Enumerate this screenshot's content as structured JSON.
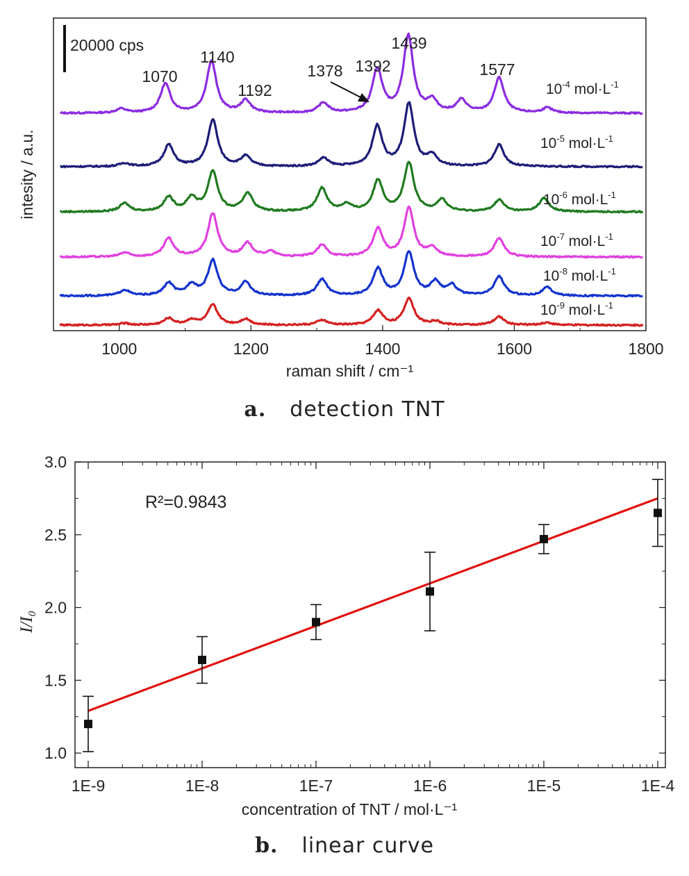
{
  "chart_data": [
    {
      "type": "line",
      "xlabel": "raman shift / cm⁻¹",
      "ylabel": "intesity / a.u.",
      "xlim": [
        900,
        1800
      ],
      "xticks": [
        1000,
        1200,
        1400,
        1600,
        1800
      ],
      "y_ticks_shown": false,
      "scale_bar_label": "20000 cps",
      "peak_labels": [
        {
          "text": "1070",
          "x": 1070
        },
        {
          "text": "1140",
          "x": 1140
        },
        {
          "text": "1192",
          "x": 1192
        },
        {
          "text": "1378",
          "x": 1378
        },
        {
          "text": "1392",
          "x": 1392
        },
        {
          "text": "1439",
          "x": 1439
        },
        {
          "text": "1577",
          "x": 1577
        }
      ],
      "series": [
        {
          "name": "10⁻⁴ mol·L⁻¹",
          "base": "10",
          "exp": "-4",
          "unit": " mol·L",
          "unit_exp": "-1",
          "color": "#8a2be2",
          "peaks": [
            [
              1003,
              0.05
            ],
            [
              1070,
              0.35
            ],
            [
              1140,
              0.62
            ],
            [
              1192,
              0.15
            ],
            [
              1310,
              0.12
            ],
            [
              1392,
              0.52
            ],
            [
              1439,
              0.92
            ],
            [
              1475,
              0.14
            ],
            [
              1520,
              0.15
            ],
            [
              1577,
              0.42
            ],
            [
              1650,
              0.06
            ]
          ]
        },
        {
          "name": "10⁻⁵ mol·L⁻¹",
          "base": "10",
          "exp": "-5",
          "unit": " mol·L",
          "unit_exp": "-1",
          "color": "#1c1c78",
          "peaks": [
            [
              1008,
              0.04
            ],
            [
              1075,
              0.26
            ],
            [
              1142,
              0.56
            ],
            [
              1192,
              0.12
            ],
            [
              1310,
              0.1
            ],
            [
              1392,
              0.48
            ],
            [
              1440,
              0.75
            ],
            [
              1475,
              0.12
            ],
            [
              1577,
              0.26
            ]
          ]
        },
        {
          "name": "10⁻⁶ mol·L⁻¹",
          "base": "10",
          "exp": "-6",
          "unit": " mol·L",
          "unit_exp": "-1",
          "color": "#1f7a1f",
          "peaks": [
            [
              1008,
              0.1
            ],
            [
              1075,
              0.17
            ],
            [
              1110,
              0.16
            ],
            [
              1142,
              0.48
            ],
            [
              1195,
              0.22
            ],
            [
              1308,
              0.28
            ],
            [
              1345,
              0.08
            ],
            [
              1393,
              0.37
            ],
            [
              1440,
              0.58
            ],
            [
              1490,
              0.14
            ],
            [
              1577,
              0.14
            ],
            [
              1645,
              0.16
            ]
          ]
        },
        {
          "name": "10⁻⁷ mol·L⁻¹",
          "base": "10",
          "exp": "-7",
          "unit": " mol·L",
          "unit_exp": "-1",
          "color": "#e040e0",
          "peaks": [
            [
              1008,
              0.05
            ],
            [
              1075,
              0.22
            ],
            [
              1142,
              0.52
            ],
            [
              1195,
              0.16
            ],
            [
              1230,
              0.06
            ],
            [
              1308,
              0.14
            ],
            [
              1393,
              0.33
            ],
            [
              1440,
              0.58
            ],
            [
              1475,
              0.1
            ],
            [
              1577,
              0.22
            ]
          ]
        },
        {
          "name": "10⁻⁸ mol·L⁻¹",
          "base": "10",
          "exp": "-8",
          "unit": " mol·L",
          "unit_exp": "-1",
          "color": "#1433cc",
          "peaks": [
            [
              1008,
              0.07
            ],
            [
              1075,
              0.15
            ],
            [
              1110,
              0.13
            ],
            [
              1142,
              0.42
            ],
            [
              1192,
              0.16
            ],
            [
              1308,
              0.2
            ],
            [
              1393,
              0.32
            ],
            [
              1440,
              0.52
            ],
            [
              1480,
              0.16
            ],
            [
              1505,
              0.12
            ],
            [
              1577,
              0.23
            ],
            [
              1650,
              0.1
            ]
          ]
        },
        {
          "name": "10⁻⁹ mol·L⁻¹",
          "base": "10",
          "exp": "-9",
          "unit": " mol·L",
          "unit_exp": "-1",
          "color": "#d42020",
          "peaks": [
            [
              1008,
              0.02
            ],
            [
              1075,
              0.08
            ],
            [
              1110,
              0.06
            ],
            [
              1142,
              0.24
            ],
            [
              1192,
              0.07
            ],
            [
              1308,
              0.06
            ],
            [
              1393,
              0.17
            ],
            [
              1440,
              0.32
            ],
            [
              1480,
              0.04
            ],
            [
              1577,
              0.1
            ],
            [
              1650,
              0.03
            ]
          ]
        }
      ]
    },
    {
      "type": "scatter",
      "xlabel": "concentration of TNT / mol·L⁻¹",
      "ylabel": "I/I₀",
      "xscale": "log",
      "xlim": [
        1e-09,
        0.0001
      ],
      "ylim": [
        0.9,
        3.0
      ],
      "xtick_labels": [
        "1E-9",
        "1E-8",
        "1E-7",
        "1E-6",
        "1E-5",
        "1E-4"
      ],
      "ytick_labels": [
        "1.0",
        "1.5",
        "2.0",
        "2.5",
        "3.0"
      ],
      "annotation": "R²=0.9843",
      "points": [
        {
          "x": 1e-09,
          "y": 1.2,
          "err": 0.19
        },
        {
          "x": 1e-08,
          "y": 1.64,
          "err": 0.16
        },
        {
          "x": 1e-07,
          "y": 1.9,
          "err": 0.12
        },
        {
          "x": 1e-06,
          "y": 2.11,
          "err": 0.27
        },
        {
          "x": 1e-05,
          "y": 2.47,
          "err": 0.1
        },
        {
          "x": 0.0001,
          "y": 2.65,
          "err": 0.23
        }
      ],
      "fit_line": {
        "x": [
          1e-09,
          0.0001
        ],
        "y": [
          1.29,
          2.75
        ],
        "color": "#e01010"
      }
    }
  ],
  "captions": {
    "a_label": "a.",
    "a_text": "detection TNT",
    "b_label": "b.",
    "b_text": "linear curve"
  }
}
